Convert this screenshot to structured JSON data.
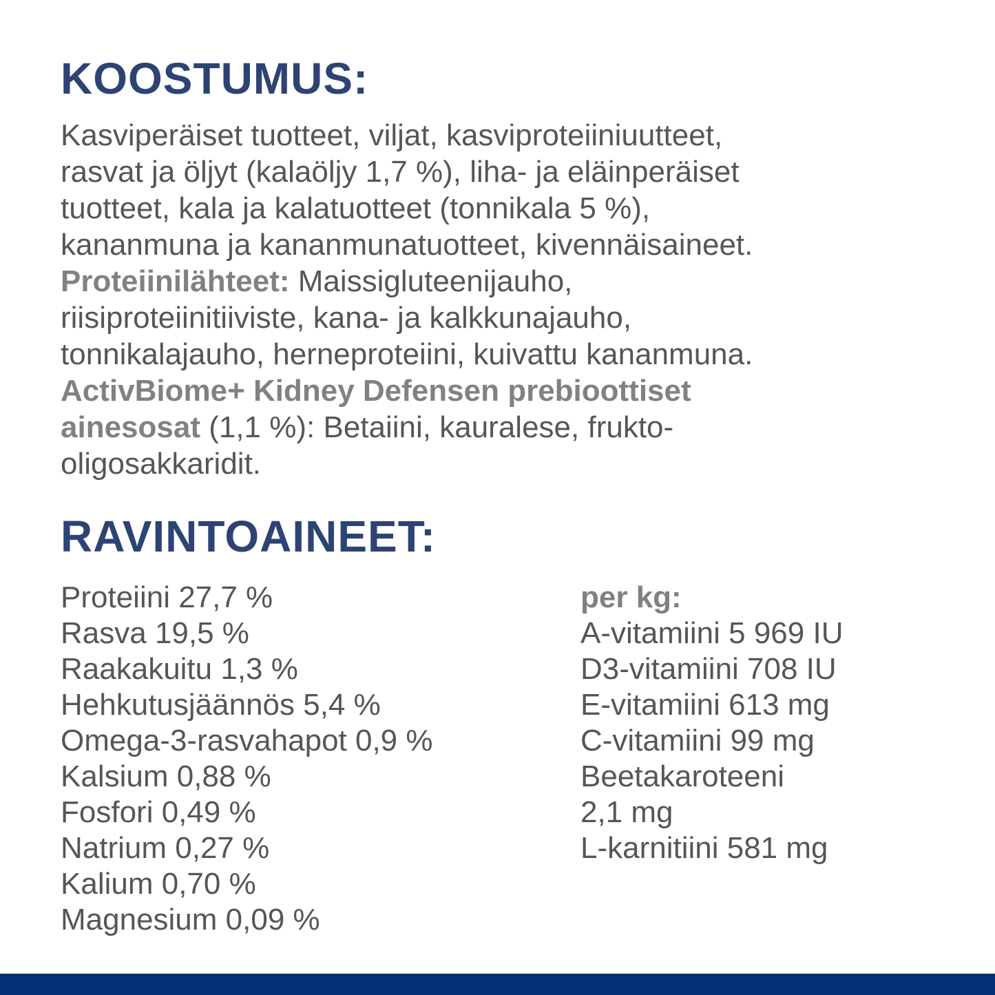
{
  "page": {
    "background": "#ffffff",
    "heading_color": "#2d4373",
    "bottom_bar_color": "#032f75",
    "body_text_color": "#54565a",
    "bold_label_color": "#808184"
  },
  "composition": {
    "heading": "KOOSTUMUS:",
    "lines": [
      {
        "bold": "",
        "regular": "Kasviperäiset tuotteet, viljat, kasviproteiiniuutteet,"
      },
      {
        "bold": "",
        "regular": "rasvat ja öljyt (kalaöljy 1,7 %), liha- ja eläinperäiset"
      },
      {
        "bold": "",
        "regular": "tuotteet, kala ja kalatuotteet (tonnikala 5 %),"
      },
      {
        "bold": "",
        "regular": "kananmuna ja kananmunatuotteet, kivennäisaineet."
      },
      {
        "bold": "Proteiinilähteet:",
        "regular": " Maissigluteenijauho,"
      },
      {
        "bold": "",
        "regular": "riisiproteiinitiiviste, kana- ja kalkkunajauho,"
      },
      {
        "bold": "",
        "regular": "tonnikalajauho, herneproteiini, kuivattu kananmuna."
      },
      {
        "bold": "ActivBiome+ Kidney Defensen prebioottiset",
        "regular": ""
      },
      {
        "bold": "ainesosat",
        "regular": " (1,1 %): Betaiini, kauralese, frukto-"
      },
      {
        "bold": "",
        "regular": "oligosakkaridit."
      }
    ]
  },
  "nutrients": {
    "heading": "RAVINTOAINEET:",
    "left_column": [
      "Proteiini 27,7 %",
      "Rasva 19,5 %",
      "Raakakuitu 1,3 %",
      "Hehkutusjäännös 5,4 %",
      "Omega-3-rasvahapot 0,9 %",
      "Kalsium 0,88 %",
      "Fosfori 0,49 %",
      "Natrium 0,27 %",
      "Kalium 0,70 %",
      "Magnesium 0,09 %"
    ],
    "right_column": {
      "header": "per kg:",
      "items": [
        "A-vitamiini 5 969 IU",
        "D3-vitamiini 708 IU",
        "E-vitamiini 613 mg",
        "C-vitamiini 99 mg",
        "Beetakaroteeni",
        "2,1 mg",
        "L-karnitiini 581 mg"
      ]
    }
  }
}
